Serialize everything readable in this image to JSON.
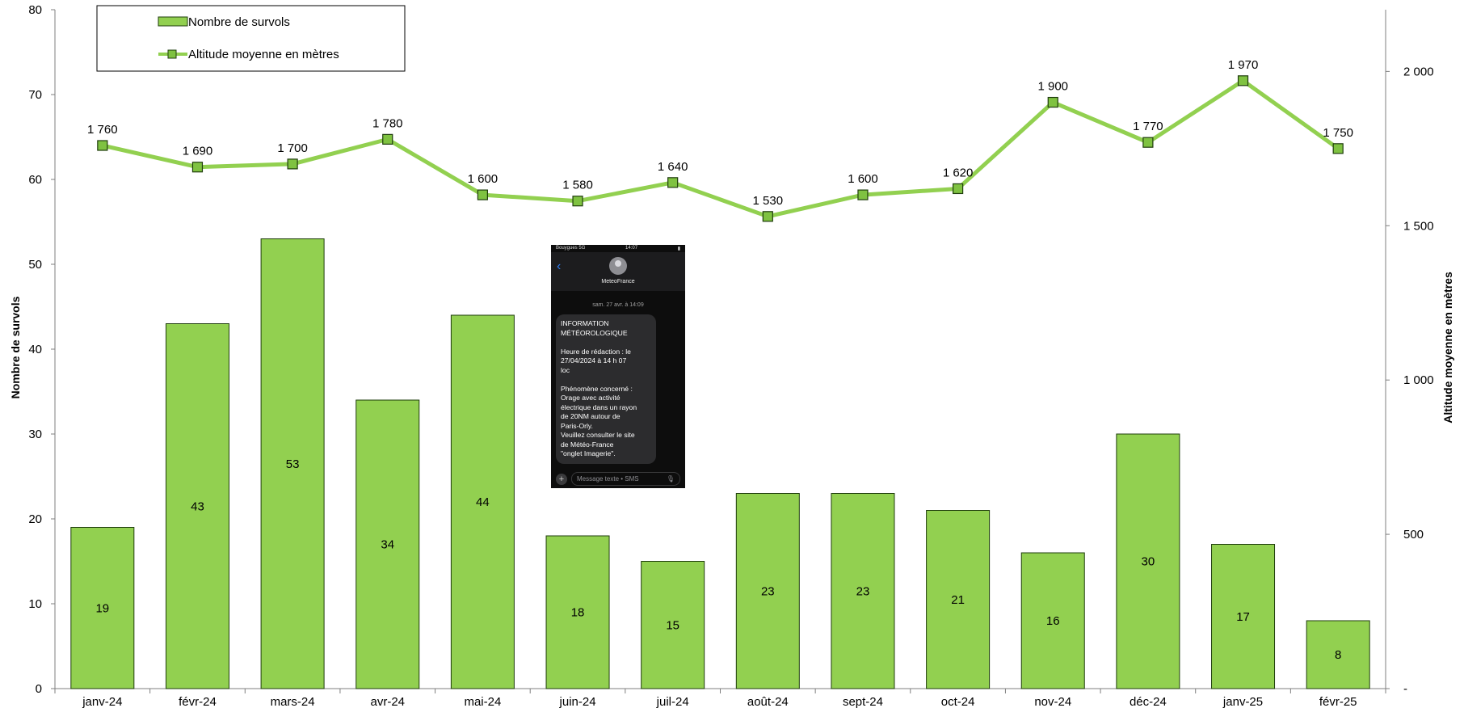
{
  "chart_data": {
    "type": "bar+line",
    "categories": [
      "janv-24",
      "févr-24",
      "mars-24",
      "avr-24",
      "mai-24",
      "juin-24",
      "juil-24",
      "août-24",
      "sept-24",
      "oct-24",
      "nov-24",
      "déc-24",
      "janv-25",
      "févr-25"
    ],
    "series": [
      {
        "name": "Nombre de survols",
        "type": "bar",
        "axis": "left",
        "values": [
          19,
          43,
          53,
          34,
          44,
          18,
          15,
          23,
          23,
          21,
          16,
          30,
          17,
          8
        ],
        "labels": [
          "19",
          "43",
          "53",
          "34",
          "44",
          "18",
          "15",
          "23",
          "23",
          "21",
          "16",
          "30",
          "17",
          "8"
        ]
      },
      {
        "name": "Altitude moyenne en mètres",
        "type": "line",
        "axis": "right",
        "values": [
          1760,
          1690,
          1700,
          1780,
          1600,
          1580,
          1640,
          1530,
          1600,
          1620,
          1900,
          1770,
          1970,
          1750
        ],
        "labels": [
          "1 760",
          "1 690",
          "1 700",
          "1 780",
          "1 600",
          "1 580",
          "1 640",
          "1 530",
          "1 600",
          "1 620",
          "1 900",
          "1 770",
          "1 970",
          "1 750"
        ]
      }
    ],
    "y_left": {
      "label": "Nombre de survols",
      "min": 0,
      "max": 80,
      "ticks": [
        0,
        10,
        20,
        30,
        40,
        50,
        60,
        70,
        80
      ],
      "tick_labels": [
        "0",
        "10",
        "20",
        "30",
        "40",
        "50",
        "60",
        "70",
        "80"
      ]
    },
    "y_right": {
      "label": "Altitude moyenne en mètres",
      "min": 0,
      "max": 2200,
      "ticks": [
        0,
        500,
        1000,
        1500,
        2000
      ],
      "tick_labels": [
        "-",
        "500",
        "1 000",
        "1 500",
        "2 000"
      ]
    },
    "legend_position": "top-left",
    "grid": false,
    "colors": {
      "bar_fill": "#92d050",
      "bar_stroke": "#1f3d0c",
      "line": "#92d050",
      "marker_fill": "#7fc241",
      "marker_stroke": "#1f3d0c"
    }
  },
  "phone_screenshot": {
    "status_left": "Bouygues 5G",
    "status_time": "14:07",
    "contact": "MeteoFrance",
    "date": "sam. 27 avr. à 14:09",
    "message": "INFORMATION\nMÉTÉOROLOGIQUE\n\nHeure de rédaction : le\n27/04/2024 à 14 h 07\nloc\n\nPhénomène concerné :\nOrage avec activité\nélectrique dans un rayon\nde 20NM autour de\nParis-Orly.\nVeuillez consulter le site\nde Météo-France\n\"onglet Imagerie\".",
    "input_placeholder": "Message texte • SMS"
  }
}
